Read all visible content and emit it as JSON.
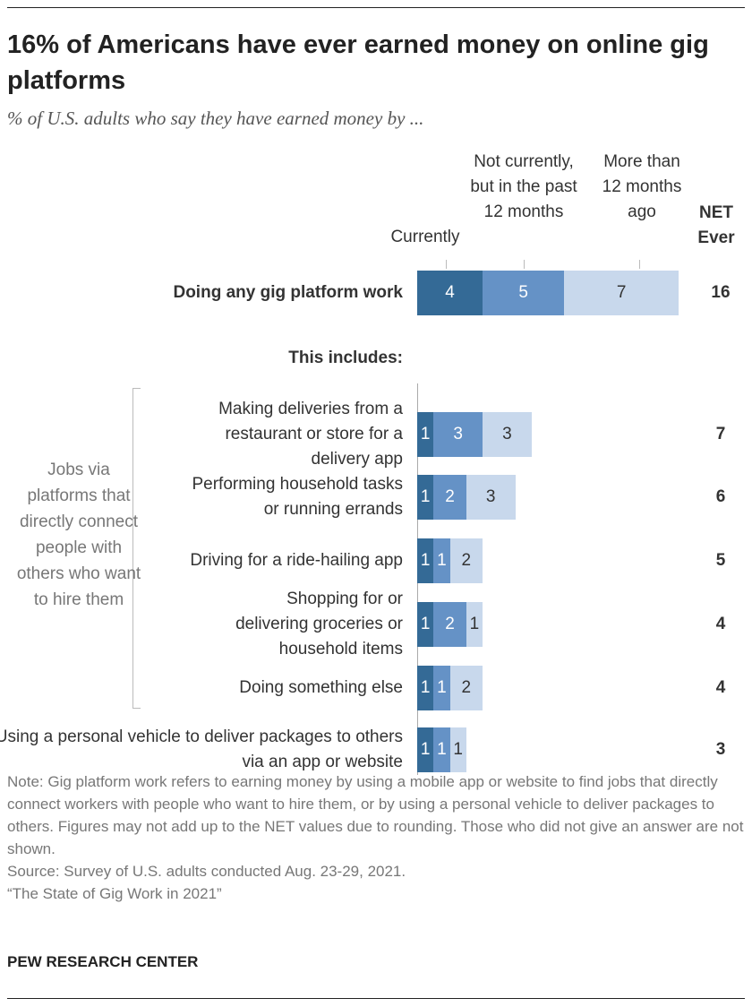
{
  "title": "16% of Americans have ever earned money on online gig platforms",
  "subtitle": "% of U.S. adults who say they have earned money by ...",
  "chart_data": {
    "type": "bar",
    "orientation": "horizontal-stacked",
    "columns": [
      "Currently",
      "Not currently, but in the past 12 months",
      "More than 12 months ago",
      "NET Ever"
    ],
    "colors": [
      "#346a96",
      "#6592c6",
      "#c8d8ec"
    ],
    "includes_label": "This includes:",
    "group_label": "Jobs via platforms that directly connect people with others who want to hire them",
    "rows": [
      {
        "label": "Doing any gig platform work",
        "values": [
          4,
          5,
          7
        ],
        "net": 16
      },
      {
        "label": "Making deliveries from a restaurant or store for a delivery app",
        "values": [
          1,
          3,
          3
        ],
        "net": 7
      },
      {
        "label": "Performing household tasks or running errands",
        "values": [
          1,
          2,
          3
        ],
        "net": 6
      },
      {
        "label": "Driving for a ride-hailing app",
        "values": [
          1,
          1,
          2
        ],
        "net": 5
      },
      {
        "label": "Shopping for or delivering groceries or household items",
        "values": [
          1,
          2,
          1
        ],
        "net": 4
      },
      {
        "label": "Doing something else",
        "values": [
          1,
          1,
          2
        ],
        "net": 4
      },
      {
        "label": "Using a personal vehicle to deliver packages to others via an app or website",
        "values": [
          1,
          1,
          1
        ],
        "net": 3
      }
    ]
  },
  "note": "Note: Gig platform work refers to earning money by using a mobile app or website to find jobs that directly connect workers with people who want to hire them, or by using a personal vehicle to deliver packages to others. Figures may not add up to the NET values due to rounding. Those who did not give an answer are not shown.",
  "source": "Source: Survey of U.S. adults conducted Aug. 23-29, 2021.",
  "report": "“The State of Gig Work in 2021”",
  "footer": "PEW RESEARCH CENTER"
}
